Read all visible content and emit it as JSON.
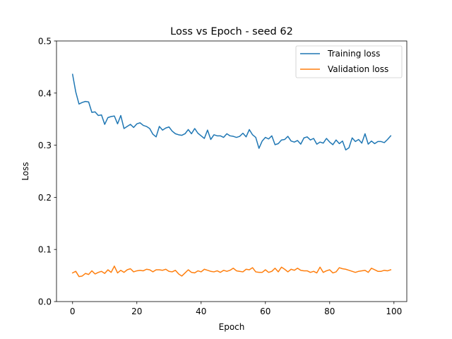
{
  "chart_data": {
    "type": "line",
    "title": "Loss vs Epoch - seed 62",
    "xlabel": "Epoch",
    "ylabel": "Loss",
    "xlim": [
      -5,
      104
    ],
    "ylim": [
      0,
      0.5
    ],
    "xticks": [
      0,
      20,
      40,
      60,
      80,
      100
    ],
    "xtick_labels": [
      "0",
      "20",
      "40",
      "60",
      "80",
      "100"
    ],
    "yticks": [
      0,
      0.1,
      0.2,
      0.3,
      0.4,
      0.5
    ],
    "ytick_labels": [
      "0.0",
      "0.1",
      "0.2",
      "0.3",
      "0.4",
      "0.5"
    ],
    "grid": false,
    "legend_position": "top-right",
    "x": [
      0,
      1,
      2,
      3,
      4,
      5,
      6,
      7,
      8,
      9,
      10,
      11,
      12,
      13,
      14,
      15,
      16,
      17,
      18,
      19,
      20,
      21,
      22,
      23,
      24,
      25,
      26,
      27,
      28,
      29,
      30,
      31,
      32,
      33,
      34,
      35,
      36,
      37,
      38,
      39,
      40,
      41,
      42,
      43,
      44,
      45,
      46,
      47,
      48,
      49,
      50,
      51,
      52,
      53,
      54,
      55,
      56,
      57,
      58,
      59,
      60,
      61,
      62,
      63,
      64,
      65,
      66,
      67,
      68,
      69,
      70,
      71,
      72,
      73,
      74,
      75,
      76,
      77,
      78,
      79,
      80,
      81,
      82,
      83,
      84,
      85,
      86,
      87,
      88,
      89,
      90,
      91,
      92,
      93,
      94,
      95,
      96,
      97,
      98,
      99
    ],
    "series": [
      {
        "name": "Training loss",
        "color": "#1f77b4",
        "values": [
          0.436,
          0.402,
          0.379,
          0.382,
          0.384,
          0.383,
          0.363,
          0.364,
          0.357,
          0.358,
          0.34,
          0.353,
          0.355,
          0.356,
          0.341,
          0.357,
          0.332,
          0.336,
          0.34,
          0.334,
          0.341,
          0.343,
          0.338,
          0.336,
          0.332,
          0.321,
          0.316,
          0.336,
          0.329,
          0.333,
          0.335,
          0.327,
          0.322,
          0.32,
          0.319,
          0.322,
          0.33,
          0.322,
          0.332,
          0.323,
          0.318,
          0.313,
          0.329,
          0.311,
          0.32,
          0.318,
          0.318,
          0.315,
          0.322,
          0.318,
          0.317,
          0.315,
          0.317,
          0.323,
          0.316,
          0.33,
          0.32,
          0.315,
          0.294,
          0.308,
          0.315,
          0.312,
          0.318,
          0.301,
          0.303,
          0.31,
          0.311,
          0.317,
          0.308,
          0.306,
          0.309,
          0.302,
          0.314,
          0.316,
          0.31,
          0.313,
          0.302,
          0.306,
          0.304,
          0.313,
          0.306,
          0.301,
          0.31,
          0.303,
          0.308,
          0.291,
          0.295,
          0.314,
          0.307,
          0.311,
          0.304,
          0.322,
          0.302,
          0.308,
          0.303,
          0.307,
          0.307,
          0.305,
          0.311,
          0.318
        ]
      },
      {
        "name": "Validation loss",
        "color": "#ff7f0e",
        "values": [
          0.055,
          0.058,
          0.048,
          0.049,
          0.054,
          0.052,
          0.059,
          0.053,
          0.056,
          0.058,
          0.054,
          0.061,
          0.056,
          0.068,
          0.055,
          0.06,
          0.056,
          0.061,
          0.063,
          0.057,
          0.059,
          0.06,
          0.059,
          0.062,
          0.061,
          0.057,
          0.061,
          0.061,
          0.06,
          0.062,
          0.058,
          0.057,
          0.06,
          0.053,
          0.049,
          0.055,
          0.061,
          0.056,
          0.055,
          0.059,
          0.057,
          0.062,
          0.06,
          0.058,
          0.057,
          0.059,
          0.056,
          0.06,
          0.058,
          0.06,
          0.064,
          0.059,
          0.058,
          0.057,
          0.062,
          0.061,
          0.065,
          0.057,
          0.056,
          0.056,
          0.061,
          0.056,
          0.058,
          0.064,
          0.057,
          0.066,
          0.062,
          0.057,
          0.062,
          0.06,
          0.064,
          0.06,
          0.059,
          0.059,
          0.056,
          0.058,
          0.055,
          0.066,
          0.056,
          0.059,
          0.061,
          0.055,
          0.057,
          0.065,
          0.063,
          0.062,
          0.06,
          0.058,
          0.056,
          0.058,
          0.059,
          0.06,
          0.056,
          0.064,
          0.061,
          0.058,
          0.058,
          0.06,
          0.059,
          0.061
        ]
      }
    ]
  }
}
